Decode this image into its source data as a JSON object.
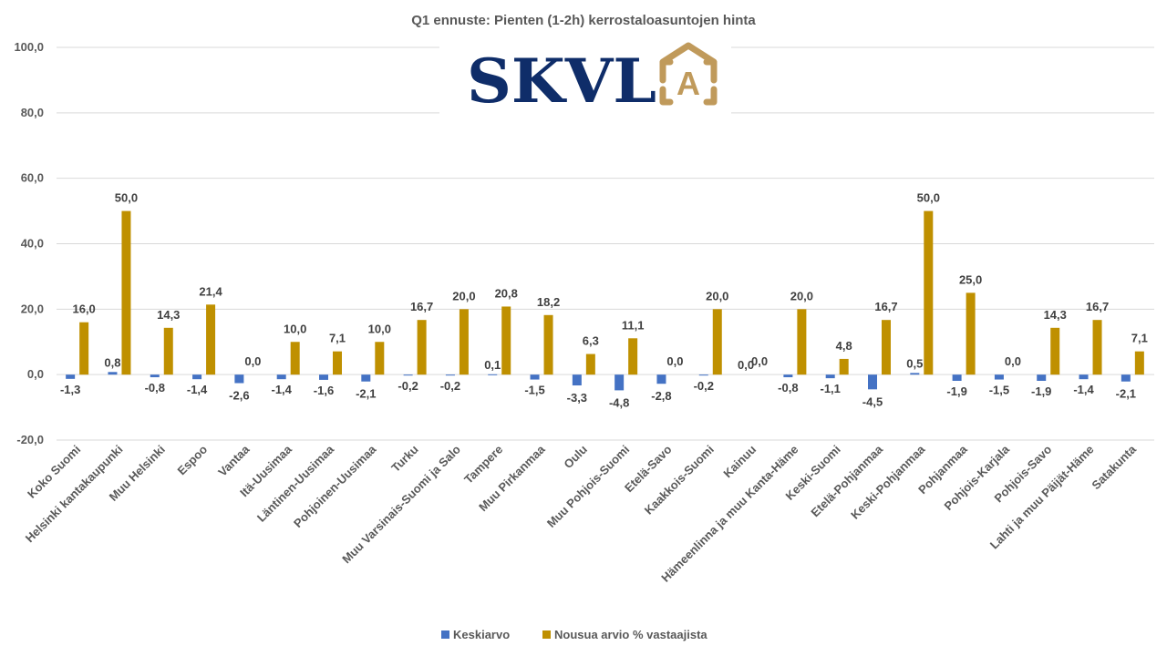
{
  "logo": {
    "text": "SKVL",
    "icon": "house-a-icon",
    "icon_letter": "A",
    "text_color": "#0f2d69",
    "icon_color": "#c09a5b"
  },
  "chart_data": {
    "type": "bar",
    "title": "Q1 ennuste: Pienten (1-2h) kerrostaloasuntojen  hinta",
    "xlabel": "",
    "ylabel": "",
    "ylim": [
      -20,
      100
    ],
    "yticks": [
      -20,
      0,
      20,
      40,
      60,
      80,
      100
    ],
    "ytick_labels": [
      "-20,0",
      "0,0",
      "20,0",
      "40,0",
      "60,0",
      "80,0",
      "100,0"
    ],
    "grid": true,
    "legend_position": "bottom",
    "categories": [
      "Koko Suomi",
      "Helsinki kantakaupunki",
      "Muu Helsinki",
      "Espoo",
      "Vantaa",
      "Itä-Uusimaa",
      "Läntinen-Uusimaa",
      "Pohjoinen-Uusimaa",
      "Turku",
      "Muu Varsinais-Suomi ja Salo",
      "Tampere",
      "Muu Pirkanmaa",
      "Oulu",
      "Muu Pohjois-Suomi",
      "Etelä-Savo",
      "Kaakkois-Suomi",
      "Kainuu",
      "Hämeenlinna ja muu Kanta-Häme",
      "Keski-Suomi",
      "Etelä-Pohjanmaa",
      "Keski-Pohjanmaa",
      "Pohjanmaa",
      "Pohjois-Karjala",
      "Pohjois-Savo",
      "Lahti ja muu Päijät-Häme",
      "Satakunta"
    ],
    "series": [
      {
        "name": "Keskiarvo",
        "color": "#4472c4",
        "values": [
          -1.3,
          0.8,
          -0.8,
          -1.4,
          -2.6,
          -1.4,
          -1.6,
          -2.1,
          -0.2,
          -0.2,
          0.1,
          -1.5,
          -3.3,
          -4.8,
          -2.8,
          -0.2,
          0.0,
          -0.8,
          -1.1,
          -4.5,
          0.5,
          -1.9,
          -1.5,
          -1.9,
          -1.4,
          -2.1
        ],
        "labels": [
          "-1,3",
          "0,8",
          "-0,8",
          "-1,4",
          "-2,6",
          "-1,4",
          "-1,6",
          "-2,1",
          "-0,2",
          "-0,2",
          "0,1",
          "-1,5",
          "-3,3",
          "-4,8",
          "-2,8",
          "-0,2",
          "0,0",
          "-0,8",
          "-1,1",
          "-4,5",
          "0,5",
          "-1,9",
          "-1,5",
          "-1,9",
          "-1,4",
          "-2,1"
        ]
      },
      {
        "name": "Nousua arvio % vastaajista",
        "color": "#bf9000",
        "values": [
          16.0,
          50.0,
          14.3,
          21.4,
          0.0,
          10.0,
          7.1,
          10.0,
          16.7,
          20.0,
          20.8,
          18.2,
          6.3,
          11.1,
          0.0,
          20.0,
          0.0,
          20.0,
          4.8,
          16.7,
          50.0,
          25.0,
          0.0,
          14.3,
          16.7,
          7.1
        ],
        "labels": [
          "16,0",
          "50,0",
          "14,3",
          "21,4",
          "0,0",
          "10,0",
          "7,1",
          "10,0",
          "16,7",
          "20,0",
          "20,8",
          "18,2",
          "6,3",
          "11,1",
          "0,0",
          "20,0",
          "0,0",
          "20,0",
          "4,8",
          "16,7",
          "50,0",
          "25,0",
          "0,0",
          "14,3",
          "16,7",
          "7,1"
        ]
      }
    ]
  }
}
